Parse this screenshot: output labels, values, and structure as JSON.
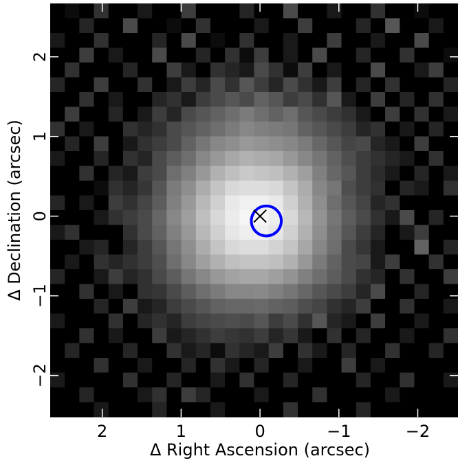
{
  "chart_data": {
    "type": "heatmap",
    "xlabel": "Δ Right Ascension (arcsec)",
    "ylabel": "Δ Declination (arcsec)",
    "xlim": [
      2.66,
      -2.51
    ],
    "ylim": [
      -2.52,
      2.67
    ],
    "xticks": [
      2,
      1,
      0,
      {
        "value": -1,
        "label": "−1"
      },
      {
        "value": -2,
        "label": "−2"
      }
    ],
    "yticks": [
      {
        "value": -2,
        "label": "−2"
      },
      {
        "value": -1,
        "label": "−1"
      },
      0,
      1,
      2
    ],
    "colormap": "gray",
    "vmin": 0,
    "vmax": 104,
    "values": [
      [
        0,
        5,
        0,
        20,
        0,
        0,
        10,
        0,
        0,
        25,
        0,
        0,
        0,
        15,
        0,
        0,
        30,
        0,
        0,
        10,
        0,
        0,
        20,
        0,
        0,
        5,
        0,
        0
      ],
      [
        0,
        0,
        15,
        0,
        0,
        30,
        0,
        0,
        5,
        0,
        20,
        0,
        0,
        0,
        10,
        0,
        0,
        25,
        0,
        0,
        0,
        15,
        0,
        35,
        0,
        0,
        10,
        0
      ],
      [
        10,
        0,
        0,
        20,
        0,
        0,
        0,
        15,
        0,
        30,
        0,
        5,
        0,
        20,
        0,
        0,
        10,
        0,
        0,
        25,
        0,
        0,
        10,
        0,
        0,
        30,
        0,
        0
      ],
      [
        0,
        0,
        25,
        0,
        10,
        0,
        0,
        30,
        0,
        0,
        15,
        0,
        20,
        5,
        25,
        0,
        10,
        0,
        30,
        0,
        0,
        15,
        0,
        0,
        20,
        0,
        0,
        5
      ],
      [
        0,
        20,
        0,
        0,
        0,
        15,
        0,
        0,
        25,
        10,
        0,
        20,
        15,
        10,
        30,
        20,
        5,
        25,
        0,
        10,
        0,
        0,
        30,
        0,
        0,
        10,
        25,
        0
      ],
      [
        15,
        0,
        0,
        25,
        0,
        0,
        20,
        0,
        10,
        25,
        15,
        30,
        20,
        35,
        25,
        15,
        30,
        20,
        10,
        25,
        0,
        15,
        0,
        20,
        0,
        0,
        0,
        15
      ],
      [
        0,
        0,
        20,
        0,
        10,
        0,
        0,
        15,
        20,
        10,
        25,
        30,
        35,
        30,
        40,
        35,
        25,
        30,
        20,
        35,
        10,
        0,
        25,
        0,
        15,
        0,
        20,
        0
      ],
      [
        0,
        25,
        0,
        0,
        15,
        0,
        10,
        25,
        15,
        30,
        35,
        40,
        45,
        50,
        45,
        40,
        45,
        35,
        30,
        25,
        20,
        10,
        0,
        25,
        0,
        20,
        0,
        10
      ],
      [
        20,
        0,
        10,
        0,
        0,
        20,
        15,
        20,
        30,
        35,
        40,
        45,
        50,
        55,
        52,
        50,
        48,
        40,
        35,
        30,
        25,
        15,
        20,
        0,
        10,
        0,
        15,
        0
      ],
      [
        0,
        15,
        0,
        25,
        0,
        10,
        20,
        25,
        30,
        40,
        48,
        55,
        58,
        62,
        60,
        58,
        55,
        50,
        42,
        35,
        28,
        30,
        15,
        10,
        0,
        25,
        0,
        0
      ],
      [
        10,
        0,
        0,
        15,
        0,
        20,
        15,
        30,
        38,
        45,
        55,
        62,
        68,
        72,
        70,
        68,
        62,
        55,
        48,
        40,
        32,
        25,
        20,
        15,
        10,
        0,
        20,
        0
      ],
      [
        0,
        0,
        20,
        0,
        15,
        10,
        25,
        30,
        45,
        52,
        62,
        72,
        78,
        82,
        80,
        78,
        72,
        65,
        52,
        42,
        35,
        25,
        18,
        10,
        0,
        15,
        0,
        10
      ],
      [
        0,
        0,
        0,
        5,
        20,
        15,
        22,
        35,
        50,
        58,
        70,
        80,
        88,
        90,
        90,
        88,
        80,
        70,
        55,
        48,
        32,
        25,
        20,
        0,
        15,
        10,
        0,
        20
      ],
      [
        15,
        0,
        10,
        0,
        25,
        20,
        28,
        38,
        52,
        62,
        75,
        85,
        95,
        98,
        98,
        95,
        85,
        72,
        58,
        45,
        35,
        28,
        15,
        20,
        0,
        0,
        0,
        0
      ],
      [
        0,
        0,
        0,
        10,
        20,
        25,
        30,
        42,
        55,
        65,
        78,
        88,
        96,
        100,
        100,
        97,
        88,
        75,
        60,
        48,
        38,
        30,
        20,
        10,
        30,
        0,
        15,
        0
      ],
      [
        10,
        20,
        0,
        0,
        0,
        20,
        30,
        40,
        52,
        62,
        75,
        85,
        94,
        97,
        98,
        94,
        85,
        72,
        58,
        46,
        35,
        25,
        15,
        0,
        10,
        25,
        0,
        0
      ],
      [
        0,
        0,
        10,
        15,
        0,
        15,
        25,
        35,
        48,
        58,
        70,
        80,
        88,
        90,
        90,
        86,
        80,
        68,
        55,
        45,
        30,
        22,
        10,
        0,
        0,
        40,
        0,
        15
      ],
      [
        0,
        10,
        0,
        20,
        15,
        20,
        25,
        32,
        45,
        55,
        65,
        72,
        78,
        80,
        80,
        78,
        72,
        62,
        50,
        40,
        30,
        28,
        10,
        25,
        0,
        0,
        20,
        0
      ],
      [
        15,
        0,
        0,
        10,
        25,
        15,
        20,
        30,
        38,
        48,
        55,
        62,
        66,
        68,
        68,
        65,
        60,
        52,
        45,
        38,
        30,
        20,
        15,
        0,
        20,
        0,
        0,
        25
      ],
      [
        0,
        0,
        20,
        0,
        10,
        0,
        20,
        22,
        30,
        38,
        45,
        50,
        55,
        55,
        56,
        52,
        48,
        42,
        35,
        30,
        25,
        15,
        30,
        0,
        0,
        15,
        0,
        0
      ],
      [
        0,
        0,
        0,
        15,
        0,
        25,
        10,
        15,
        25,
        30,
        35,
        40,
        42,
        42,
        43,
        40,
        38,
        32,
        28,
        20,
        15,
        25,
        0,
        0,
        20,
        0,
        0,
        10
      ],
      [
        10,
        0,
        0,
        0,
        20,
        0,
        15,
        20,
        15,
        25,
        28,
        30,
        32,
        30,
        35,
        25,
        30,
        20,
        35,
        15,
        10,
        0,
        25,
        0,
        0,
        10,
        0,
        0
      ],
      [
        0,
        0,
        20,
        0,
        10,
        0,
        0,
        25,
        10,
        15,
        20,
        25,
        22,
        20,
        25,
        15,
        22,
        10,
        0,
        20,
        0,
        15,
        0,
        0,
        10,
        0,
        0,
        20
      ],
      [
        0,
        15,
        0,
        0,
        0,
        15,
        0,
        0,
        20,
        10,
        15,
        5,
        20,
        15,
        10,
        25,
        0,
        20,
        10,
        0,
        15,
        0,
        0,
        20,
        0,
        0,
        15,
        0
      ],
      [
        0,
        0,
        0,
        20,
        0,
        0,
        10,
        0,
        0,
        15,
        0,
        20,
        10,
        0,
        15,
        0,
        0,
        10,
        0,
        0,
        25,
        0,
        10,
        0,
        0,
        0,
        0,
        0
      ],
      [
        10,
        0,
        0,
        0,
        0,
        20,
        0,
        0,
        15,
        0,
        0,
        10,
        0,
        20,
        0,
        0,
        15,
        0,
        0,
        0,
        0,
        15,
        0,
        0,
        20,
        0,
        0,
        10
      ],
      [
        0,
        0,
        15,
        0,
        0,
        0,
        10,
        20,
        0,
        25,
        15,
        0,
        0,
        0,
        10,
        0,
        0,
        0,
        20,
        0,
        0,
        0,
        0,
        10,
        0,
        0,
        0,
        0
      ],
      [
        0,
        0,
        0,
        10,
        0,
        0,
        0,
        15,
        0,
        0,
        0,
        10,
        0,
        0,
        0,
        0,
        20,
        0,
        0,
        0,
        0,
        15,
        0,
        0,
        0,
        0,
        0,
        0
      ]
    ],
    "markers": [
      {
        "type": "circle",
        "x": -0.08,
        "y": -0.06,
        "radius": 0.19,
        "color": "#0000ff"
      },
      {
        "type": "cross",
        "x": 0,
        "y": 0,
        "color": "#000000"
      }
    ]
  }
}
